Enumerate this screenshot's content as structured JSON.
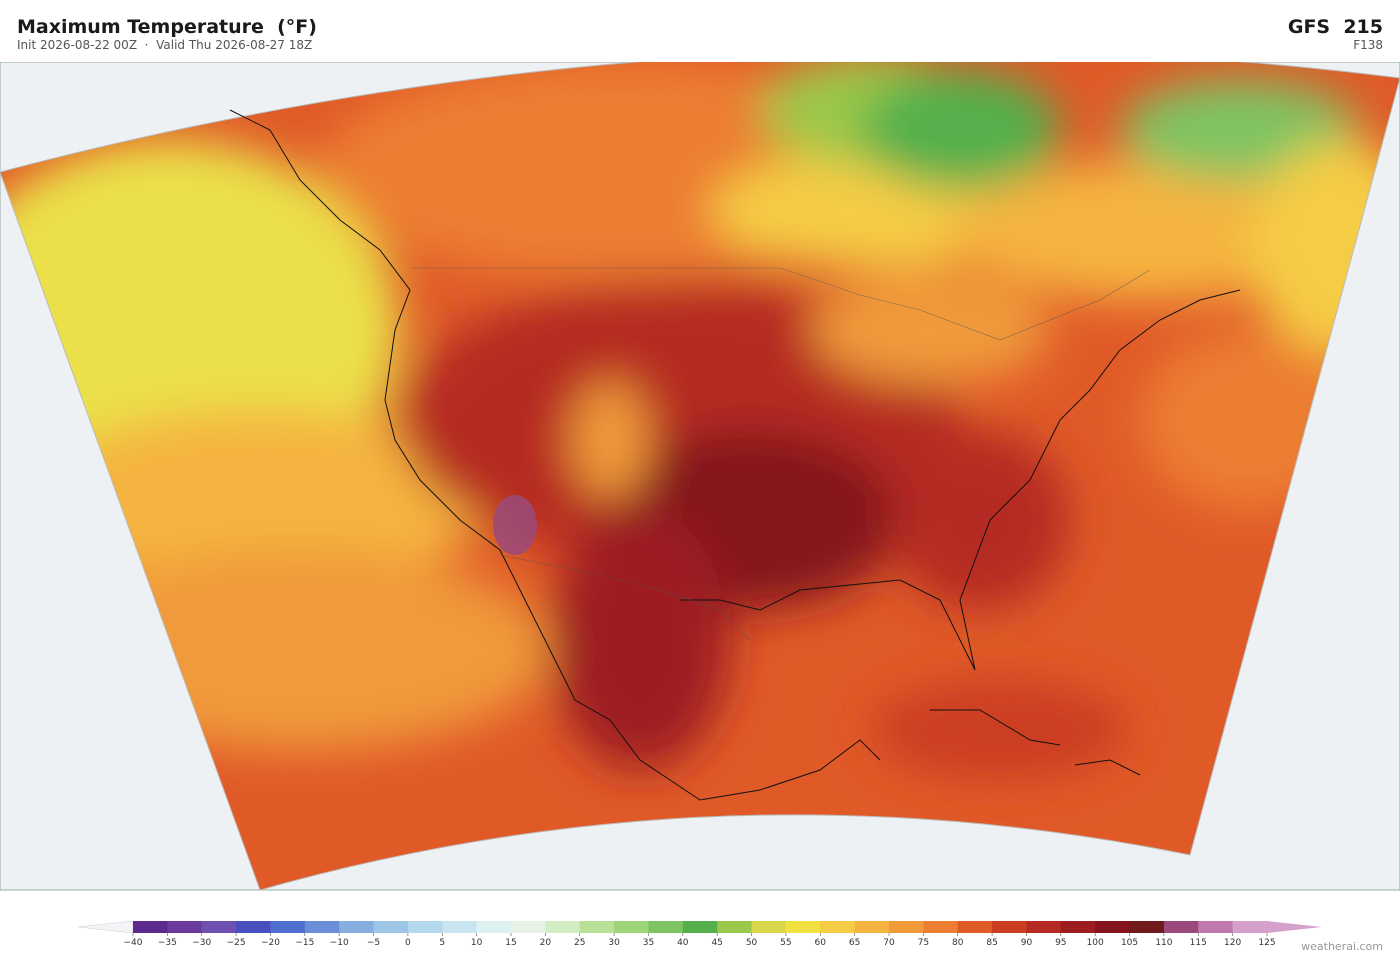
{
  "header": {
    "title": "Maximum Temperature  (°F)",
    "subtitle": "Init 2026-08-22 00Z  ·  Valid Thu 2026-08-27 18Z",
    "model": "GFS  215",
    "forecast_hour": "F138"
  },
  "colorbar": {
    "ticks": [
      {
        "value": -40,
        "label": "−40"
      },
      {
        "value": -35,
        "label": "−35"
      },
      {
        "value": -30,
        "label": "−30"
      },
      {
        "value": -25,
        "label": "−25"
      },
      {
        "value": -20,
        "label": "−20"
      },
      {
        "value": -15,
        "label": "−15"
      },
      {
        "value": -10,
        "label": "−10"
      },
      {
        "value": -5,
        "label": "−5"
      },
      0,
      5,
      10,
      15,
      20,
      25,
      30,
      35,
      40,
      45,
      50,
      55,
      60,
      65,
      70,
      75,
      80,
      85,
      90,
      95,
      100,
      105,
      110,
      115,
      120,
      125
    ],
    "colors": [
      "#5b2a8c",
      "#6a3a9c",
      "#6f4fb0",
      "#4a4fbf",
      "#4f6fcf",
      "#6a8fd8",
      "#86aee0",
      "#9dc5e6",
      "#b3d8ec",
      "#c9e6f0",
      "#dff0f0",
      "#e6f3e6",
      "#d4ecc4",
      "#b8e098",
      "#9ed47a",
      "#7ec462",
      "#55b04c",
      "#9cc84a",
      "#d8d84a",
      "#f0e040",
      "#f5cc45",
      "#f5b440",
      "#f09a3a",
      "#ec7e32",
      "#e05a28",
      "#cc3e22",
      "#b52a22",
      "#9c1c20",
      "#85141c",
      "#701a1c",
      "#9a4a7a",
      "#c07ab0",
      "#d6a0cc"
    ],
    "under_color": "#f6f3f8",
    "over_color": "#d6a0cc"
  },
  "footer": {
    "credit": "weatherai.com"
  }
}
